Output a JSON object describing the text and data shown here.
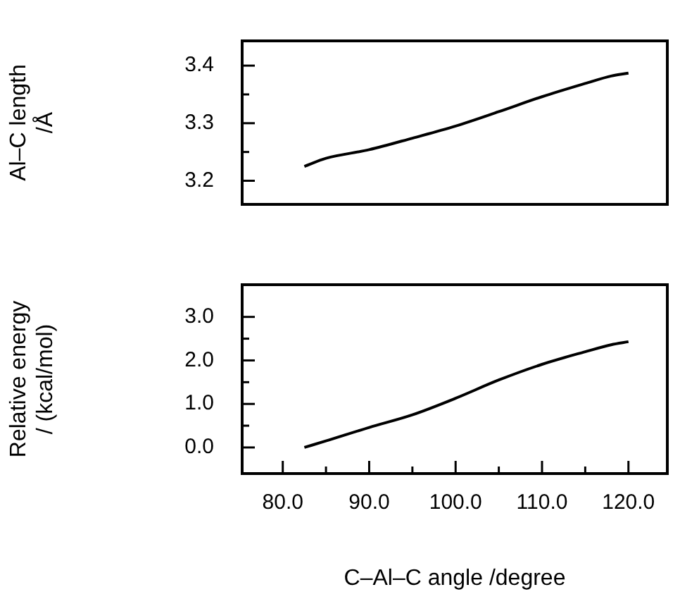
{
  "chart_data": [
    {
      "type": "line",
      "ylabel": "Al–C length /Å",
      "tick_labels": "y",
      "grid": false,
      "legend": false,
      "marker": "none",
      "line_style": "solid",
      "x": [
        82.5,
        85,
        90,
        95,
        100,
        105,
        110,
        115,
        118,
        120
      ],
      "series": [
        {
          "color": "#000000",
          "values": [
            3.225,
            3.239,
            3.254,
            3.274,
            3.295,
            3.32,
            3.346,
            3.369,
            3.382,
            3.387
          ]
        }
      ],
      "xlim": [
        75.3,
        124.5
      ],
      "ylim": [
        3.159,
        3.443
      ],
      "yticks": [
        {
          "value": 3.2,
          "label": "3.2"
        },
        {
          "value": 3.25,
          "label": null
        },
        {
          "value": 3.3,
          "label": "3.3"
        },
        {
          "value": 3.35,
          "label": null
        },
        {
          "value": 3.4,
          "label": "3.4"
        }
      ]
    },
    {
      "type": "line",
      "xlabel": "C–Al–C angle /degree",
      "ylabel": "Relative energy / (kcal/mol)",
      "grid": false,
      "legend": false,
      "marker": "none",
      "line_style": "solid",
      "x": [
        82.5,
        85,
        90,
        95,
        100,
        105,
        110,
        115,
        118,
        120
      ],
      "series": [
        {
          "color": "#000000",
          "values": [
            0.0,
            0.15,
            0.46,
            0.75,
            1.13,
            1.55,
            1.91,
            2.2,
            2.36,
            2.43
          ]
        }
      ],
      "xlim": [
        75.3,
        124.5
      ],
      "xticks": [
        {
          "value": 80,
          "label": "80.0"
        },
        {
          "value": 85,
          "label": null
        },
        {
          "value": 90,
          "label": "90.0"
        },
        {
          "value": 95,
          "label": null
        },
        {
          "value": 100,
          "label": "100.0"
        },
        {
          "value": 105,
          "label": null
        },
        {
          "value": 110,
          "label": "110.0"
        },
        {
          "value": 115,
          "label": null
        },
        {
          "value": 120,
          "label": "120.0"
        }
      ],
      "ylim": [
        -0.6,
        3.74
      ],
      "yticks": [
        {
          "value": 0,
          "label": "0.0"
        },
        {
          "value": 0.5,
          "label": null
        },
        {
          "value": 1,
          "label": "1.0"
        },
        {
          "value": 1.5,
          "label": null
        },
        {
          "value": 2,
          "label": "2.0"
        },
        {
          "value": 2.5,
          "label": null
        },
        {
          "value": 3,
          "label": "3.0"
        }
      ]
    }
  ]
}
